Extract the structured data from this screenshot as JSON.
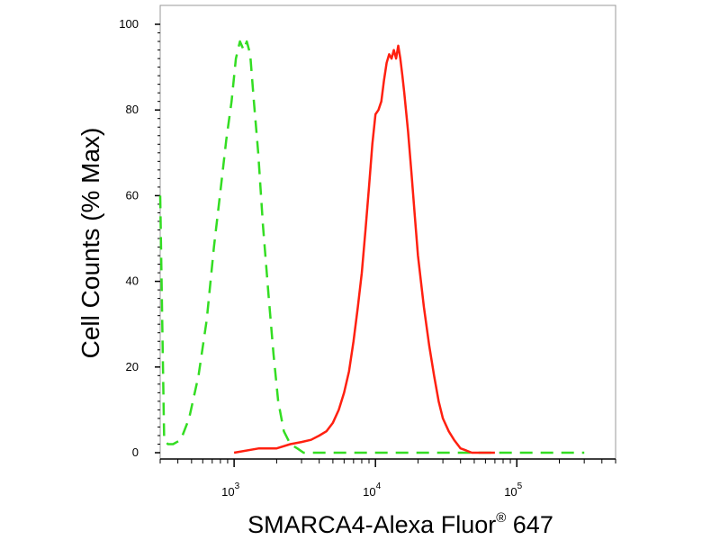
{
  "chart_data": {
    "type": "line",
    "title": "",
    "xlabel": "SMARCA4-Alexa Fluor",
    "xlabel_superscript": "®",
    "xlabel_suffix": " 647",
    "ylabel": "Cell Counts (% Max)",
    "x_scale": "log",
    "xlim": [
      300,
      500000
    ],
    "ylim": [
      0,
      100
    ],
    "y_ticks": [
      0,
      20,
      40,
      60,
      80,
      100
    ],
    "x_tick_labels": [
      {
        "value": 1000,
        "base": "10",
        "exp": "3"
      },
      {
        "value": 10000,
        "base": "10",
        "exp": "4"
      },
      {
        "value": 100000,
        "base": "10",
        "exp": "5"
      }
    ],
    "grid": false,
    "series": [
      {
        "color": "#33dd22",
        "style": "dashed",
        "x": [
          300,
          320,
          340,
          370,
          420,
          480,
          560,
          640,
          720,
          800,
          880,
          960,
          1030,
          1100,
          1170,
          1230,
          1300,
          1380,
          1480,
          1600,
          1750,
          1900,
          2050,
          2250,
          2500,
          2800,
          3100,
          3500,
          4200,
          6000,
          10000,
          20000,
          40000,
          100000,
          300000
        ],
        "y": [
          60,
          3,
          2,
          2,
          3,
          8,
          18,
          31,
          48,
          61,
          73,
          82,
          92,
          96,
          94,
          96,
          93,
          82,
          70,
          53,
          37,
          23,
          12,
          5,
          2,
          1,
          0,
          0,
          0,
          0,
          0,
          0,
          0,
          0,
          0
        ]
      },
      {
        "color": "#ff2010",
        "style": "solid",
        "x": [
          1000,
          1500,
          2000,
          2500,
          3000,
          3500,
          4000,
          4500,
          5000,
          5500,
          6000,
          6500,
          7000,
          7500,
          8000,
          8500,
          9000,
          9500,
          10000,
          10500,
          11000,
          11500,
          12000,
          12500,
          13000,
          13500,
          14000,
          14500,
          15000,
          15500,
          16000,
          17000,
          18000,
          19000,
          20000,
          22000,
          24000,
          26000,
          28000,
          30000,
          33000,
          36000,
          40000,
          44000,
          48000,
          52000,
          56000,
          60000,
          70000
        ],
        "y": [
          0,
          1,
          1,
          2,
          2.5,
          3,
          4,
          5,
          7,
          10,
          14,
          19,
          26,
          34,
          42,
          52,
          62,
          72,
          79,
          80,
          82,
          87,
          91,
          93,
          92,
          94,
          92,
          95,
          92,
          88,
          84,
          75,
          65,
          55,
          46,
          34,
          25,
          18,
          12,
          8,
          5,
          3,
          1,
          0.5,
          0,
          0,
          0,
          0,
          0
        ]
      }
    ]
  }
}
